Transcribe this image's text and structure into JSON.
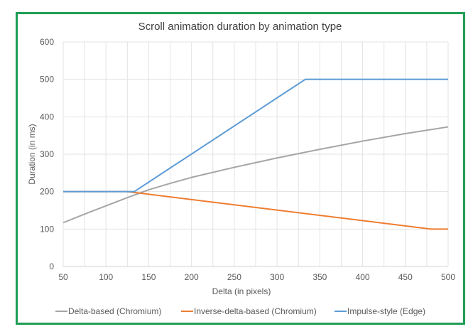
{
  "chart_data": {
    "type": "line",
    "title": "Scroll animation duration by animation type",
    "xlabel": "Delta (in pixels)",
    "ylabel": "Duration (in ms)",
    "xlim": [
      50,
      500
    ],
    "ylim": [
      0,
      600
    ],
    "x_ticks": [
      50,
      100,
      150,
      200,
      250,
      300,
      350,
      400,
      450,
      500
    ],
    "y_ticks": [
      0,
      100,
      200,
      300,
      400,
      500,
      600
    ],
    "grid": true,
    "legend_position": "bottom",
    "series": [
      {
        "name": "Delta-based (Chromium)",
        "color": "#a5a5a5",
        "points": [
          [
            50,
            117
          ],
          [
            75,
            140
          ],
          [
            100,
            162
          ],
          [
            125,
            184
          ],
          [
            150,
            205
          ],
          [
            175,
            222
          ],
          [
            200,
            238
          ],
          [
            250,
            265
          ],
          [
            300,
            290
          ],
          [
            350,
            313
          ],
          [
            400,
            335
          ],
          [
            450,
            355
          ],
          [
            500,
            373
          ]
        ]
      },
      {
        "name": "Inverse-delta-based (Chromium)",
        "color": "#ed7d31",
        "points": [
          [
            50,
            200
          ],
          [
            125,
            200
          ],
          [
            480,
            100
          ],
          [
            500,
            100
          ]
        ]
      },
      {
        "name": "Impulse-style (Edge)",
        "color": "#5b9bd5",
        "points": [
          [
            50,
            200
          ],
          [
            133,
            200
          ],
          [
            333,
            500
          ],
          [
            500,
            500
          ]
        ]
      }
    ]
  }
}
